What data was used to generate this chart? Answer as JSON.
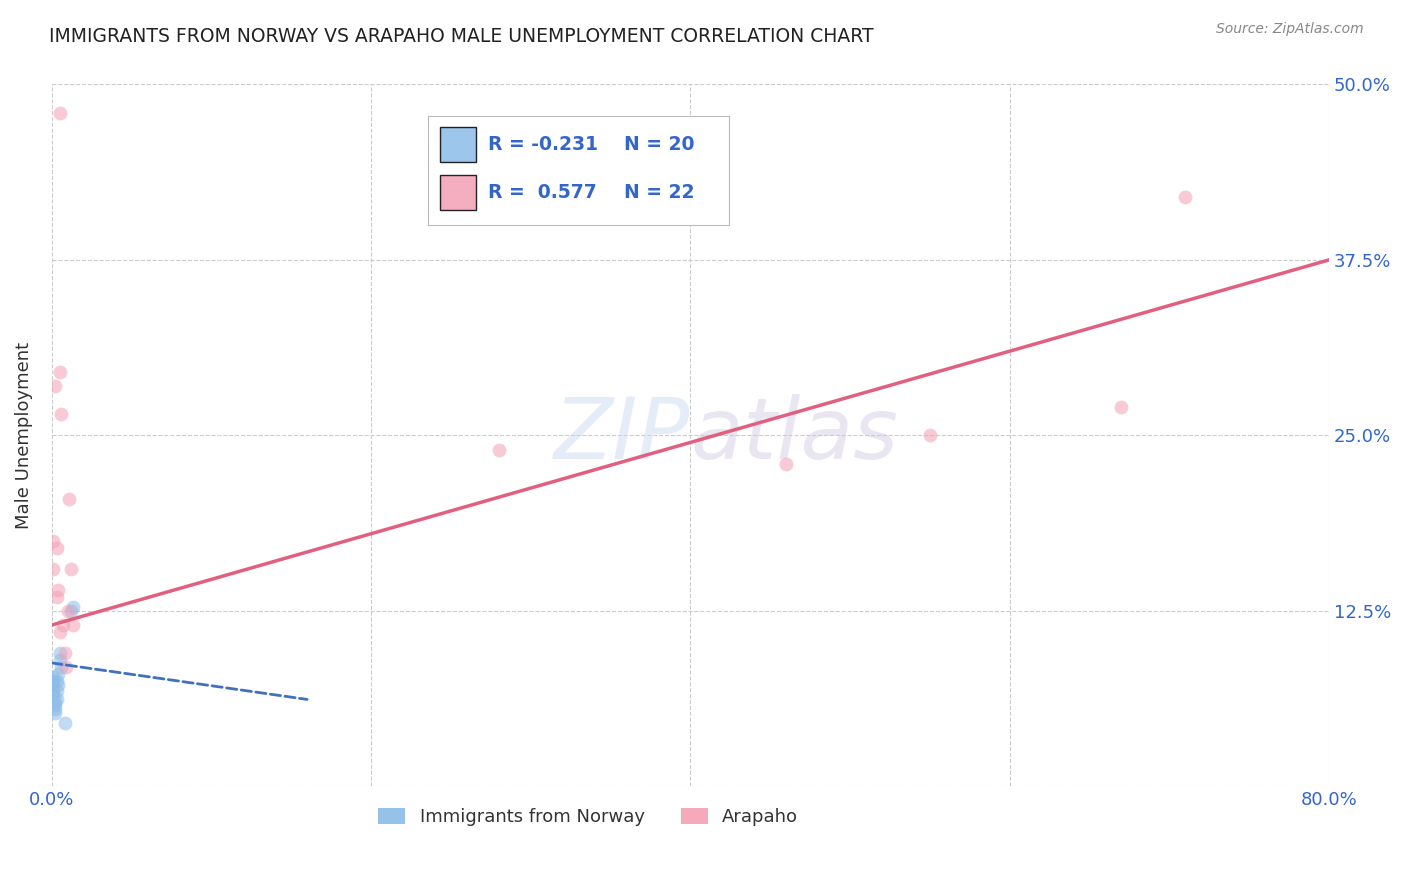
{
  "title": "IMMIGRANTS FROM NORWAY VS ARAPAHO MALE UNEMPLOYMENT CORRELATION CHART",
  "source": "Source: ZipAtlas.com",
  "ylabel": "Male Unemployment",
  "xlim": [
    0.0,
    0.8
  ],
  "ylim": [
    0.0,
    0.5
  ],
  "xtick_positions": [
    0.0,
    0.2,
    0.4,
    0.6,
    0.8
  ],
  "xtick_labels": [
    "0.0%",
    "",
    "",
    "",
    "80.0%"
  ],
  "ytick_positions": [
    0.0,
    0.125,
    0.25,
    0.375,
    0.5
  ],
  "ytick_labels": [
    "",
    "12.5%",
    "25.0%",
    "37.5%",
    "50.0%"
  ],
  "legend_R_blue": "-0.231",
  "legend_N_blue": "20",
  "legend_R_pink": "0.577",
  "legend_N_pink": "22",
  "blue_scatter_x": [
    0.001,
    0.001,
    0.001,
    0.001,
    0.001,
    0.002,
    0.002,
    0.002,
    0.002,
    0.003,
    0.003,
    0.003,
    0.004,
    0.004,
    0.005,
    0.005,
    0.006,
    0.008,
    0.012,
    0.013
  ],
  "blue_scatter_y": [
    0.068,
    0.072,
    0.075,
    0.078,
    0.065,
    0.06,
    0.058,
    0.055,
    0.052,
    0.075,
    0.068,
    0.062,
    0.08,
    0.072,
    0.095,
    0.09,
    0.085,
    0.045,
    0.125,
    0.128
  ],
  "pink_scatter_x": [
    0.001,
    0.001,
    0.002,
    0.003,
    0.003,
    0.004,
    0.005,
    0.005,
    0.006,
    0.007,
    0.008,
    0.009,
    0.01,
    0.011,
    0.012,
    0.013,
    0.28,
    0.46,
    0.55,
    0.67,
    0.71,
    0.005
  ],
  "pink_scatter_y": [
    0.155,
    0.175,
    0.285,
    0.135,
    0.17,
    0.14,
    0.295,
    0.11,
    0.265,
    0.115,
    0.095,
    0.085,
    0.125,
    0.205,
    0.155,
    0.115,
    0.24,
    0.23,
    0.25,
    0.27,
    0.42,
    0.48
  ],
  "blue_line_x": [
    0.0,
    0.16
  ],
  "blue_line_y": [
    0.088,
    0.062
  ],
  "pink_line_x": [
    0.0,
    0.8
  ],
  "pink_line_y": [
    0.115,
    0.375
  ],
  "watermark_zip": "ZIP",
  "watermark_atlas": "atlas",
  "blue_color": "#8bbce8",
  "pink_color": "#f4a0b5",
  "blue_line_color": "#4070c0",
  "pink_line_color": "#e06080",
  "marker_size": 100,
  "alpha": 0.55
}
